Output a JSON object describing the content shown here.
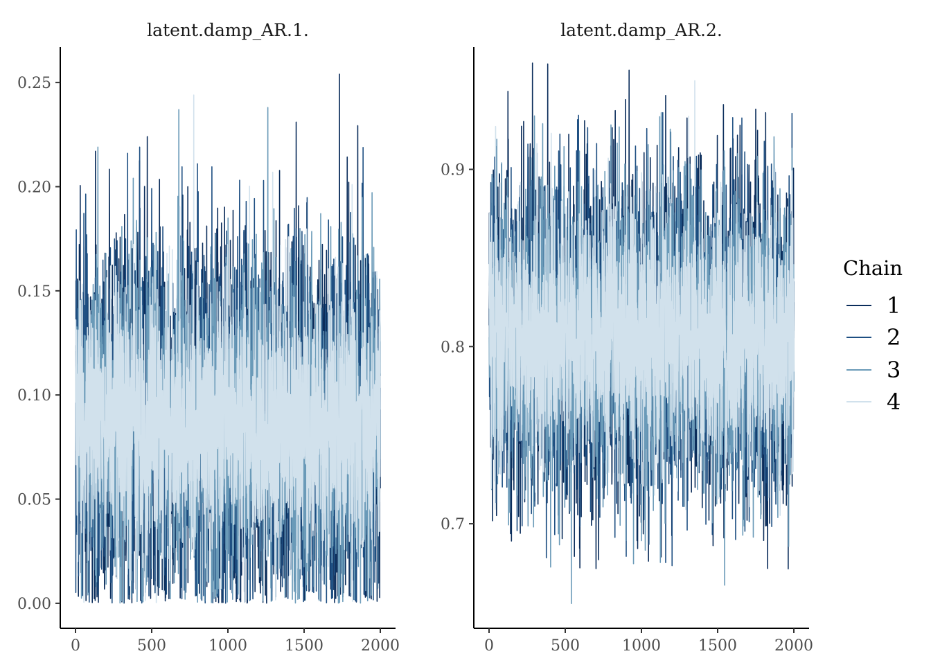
{
  "chart_data": [
    {
      "type": "line",
      "title": "latent.damp_AR.1.",
      "xlabel": "",
      "ylabel": "",
      "xlim": [
        -100,
        2100
      ],
      "ylim": [
        -0.012,
        0.267
      ],
      "xticks": [
        0,
        500,
        1000,
        1500,
        2000
      ],
      "xtick_labels": [
        "0",
        "500",
        "1000",
        "1500",
        "2000"
      ],
      "yticks": [
        0.0,
        0.05,
        0.1,
        0.15,
        0.2,
        0.25
      ],
      "ytick_labels": [
        "0.00",
        "0.05",
        "0.10",
        "0.15",
        "0.20",
        "0.25"
      ],
      "iterations": [
        1,
        2000
      ],
      "series": [
        {
          "name": "1",
          "mean": 0.085,
          "sd": 0.043,
          "min": 0.0,
          "max": 0.254,
          "peaks": [
            [
              1732,
              0.254
            ],
            [
              1448,
              0.231
            ],
            [
              131,
              0.217
            ]
          ]
        },
        {
          "name": "2",
          "mean": 0.085,
          "sd": 0.041,
          "min": 0.0,
          "max": 0.219,
          "peaks": [
            [
              421,
              0.219
            ],
            [
              800,
              0.211
            ]
          ]
        },
        {
          "name": "3",
          "mean": 0.085,
          "sd": 0.038,
          "min": 0.0,
          "max": 0.238,
          "peaks": [
            [
              1262,
              0.238
            ],
            [
              678,
              0.237
            ],
            [
              147,
              0.219
            ]
          ]
        },
        {
          "name": "4",
          "mean": 0.085,
          "sd": 0.032,
          "min": 0.0,
          "max": 0.244,
          "peaks": [
            [
              776,
              0.244
            ],
            [
              1815,
              0.201
            ]
          ]
        }
      ]
    },
    {
      "type": "line",
      "title": "latent.damp_AR.2.",
      "xlabel": "",
      "ylabel": "",
      "xlim": [
        -100,
        2100
      ],
      "ylim": [
        0.641,
        0.969
      ],
      "xticks": [
        0,
        500,
        1000,
        1500,
        2000
      ],
      "xtick_labels": [
        "0",
        "500",
        "1000",
        "1500",
        "2000"
      ],
      "yticks": [
        0.7,
        0.8,
        0.9
      ],
      "ytick_labels": [
        "0.7",
        "0.8",
        "0.9"
      ],
      "iterations": [
        1,
        2000
      ],
      "series": [
        {
          "name": "1",
          "mean": 0.805,
          "sd": 0.048,
          "min": 0.674,
          "max": 0.96,
          "peaks": [
            [
              285,
              0.96
            ],
            [
              1750,
              0.934
            ]
          ]
        },
        {
          "name": "2",
          "mean": 0.805,
          "sd": 0.045,
          "min": 0.676,
          "max": 0.932,
          "peaks": [
            [
              1140,
              0.932
            ],
            [
              1035,
              0.923
            ]
          ]
        },
        {
          "name": "3",
          "mean": 0.805,
          "sd": 0.042,
          "min": 0.655,
          "max": 0.932,
          "peaks": [
            [
              540,
              0.655
            ],
            [
              1130,
              0.932
            ]
          ]
        },
        {
          "name": "4",
          "mean": 0.805,
          "sd": 0.035,
          "min": 0.673,
          "max": 0.95,
          "peaks": [
            [
              1350,
              0.95
            ],
            [
              1310,
              0.93
            ]
          ]
        }
      ]
    }
  ],
  "legend": {
    "title": "Chain",
    "items": [
      {
        "label": "1",
        "color": "#0b2d5b"
      },
      {
        "label": "2",
        "color": "#1e4f82"
      },
      {
        "label": "3",
        "color": "#6a9ab8"
      },
      {
        "label": "4",
        "color": "#d1e1ec"
      }
    ]
  }
}
